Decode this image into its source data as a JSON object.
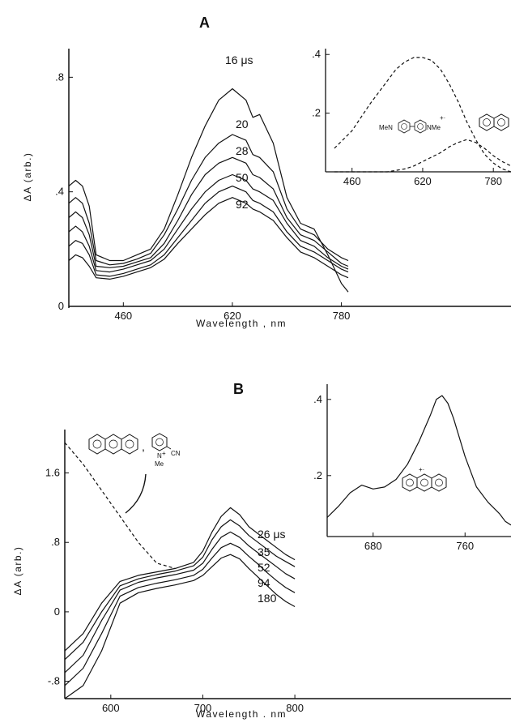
{
  "chart_data": [
    {
      "panel": "A",
      "type": "line",
      "ylabel": "ΔA (arb.)",
      "xlabel": "Wavelength ,     nm",
      "xticks": [
        "460",
        "620",
        "780"
      ],
      "yticks": [
        "0",
        ".4",
        ".8"
      ],
      "xlim": [
        380,
        790
      ],
      "ylim": [
        0,
        0.9
      ],
      "x": [
        380,
        390,
        400,
        410,
        420,
        440,
        460,
        480,
        500,
        520,
        540,
        560,
        580,
        600,
        620,
        640,
        650,
        660,
        680,
        700,
        720,
        740,
        760,
        780,
        790
      ],
      "series": [
        {
          "name": "16 μs",
          "values": [
            0.42,
            0.44,
            0.42,
            0.35,
            0.18,
            0.16,
            0.16,
            0.18,
            0.2,
            0.27,
            0.39,
            0.52,
            0.63,
            0.72,
            0.76,
            0.72,
            0.66,
            0.67,
            0.57,
            0.38,
            0.29,
            0.27,
            0.18,
            0.08,
            0.05
          ]
        },
        {
          "name": "20",
          "values": [
            0.36,
            0.38,
            0.36,
            0.29,
            0.16,
            0.145,
            0.15,
            0.165,
            0.185,
            0.25,
            0.34,
            0.44,
            0.52,
            0.57,
            0.6,
            0.58,
            0.53,
            0.52,
            0.47,
            0.34,
            0.27,
            0.25,
            0.2,
            0.17,
            0.16
          ]
        },
        {
          "name": "28",
          "values": [
            0.31,
            0.33,
            0.31,
            0.25,
            0.14,
            0.135,
            0.14,
            0.155,
            0.17,
            0.22,
            0.3,
            0.39,
            0.46,
            0.5,
            0.52,
            0.5,
            0.46,
            0.45,
            0.41,
            0.31,
            0.25,
            0.23,
            0.19,
            0.15,
            0.14
          ]
        },
        {
          "name": "50",
          "values": [
            0.26,
            0.28,
            0.26,
            0.21,
            0.125,
            0.12,
            0.13,
            0.145,
            0.16,
            0.2,
            0.27,
            0.34,
            0.4,
            0.44,
            0.46,
            0.44,
            0.41,
            0.4,
            0.37,
            0.29,
            0.23,
            0.21,
            0.17,
            0.14,
            0.13
          ]
        },
        {
          "name": "92",
          "values": [
            0.21,
            0.23,
            0.22,
            0.18,
            0.11,
            0.105,
            0.115,
            0.13,
            0.145,
            0.18,
            0.24,
            0.3,
            0.36,
            0.4,
            0.42,
            0.4,
            0.37,
            0.36,
            0.33,
            0.26,
            0.21,
            0.19,
            0.16,
            0.13,
            0.12
          ]
        },
        {
          "name": "",
          "values": [
            0.16,
            0.18,
            0.17,
            0.14,
            0.1,
            0.095,
            0.105,
            0.12,
            0.135,
            0.165,
            0.22,
            0.27,
            0.32,
            0.36,
            0.38,
            0.36,
            0.34,
            0.33,
            0.3,
            0.24,
            0.19,
            0.17,
            0.14,
            0.11,
            0.1
          ]
        }
      ],
      "inset": {
        "type": "line",
        "xticks": [
          "460",
          "620",
          "780"
        ],
        "yticks": [
          ".2",
          ".4"
        ],
        "xlim": [
          400,
          820
        ],
        "ylim": [
          0,
          0.42
        ],
        "x": [
          420,
          460,
          500,
          540,
          560,
          580,
          600,
          620,
          640,
          660,
          680,
          700,
          720,
          740,
          760,
          780,
          800,
          820
        ],
        "series": [
          {
            "name": "",
            "style": "dashed",
            "values": [
              0.08,
              0.14,
              0.23,
              0.31,
              0.35,
              0.375,
              0.39,
              0.39,
              0.38,
              0.35,
              0.3,
              0.24,
              0.17,
              0.11,
              0.06,
              0.03,
              0.01,
              0.0
            ]
          },
          {
            "name": "",
            "style": "dashed",
            "values": [
              0.0,
              0.0,
              0.0,
              0.0,
              0.005,
              0.01,
              0.02,
              0.035,
              0.05,
              0.065,
              0.085,
              0.1,
              0.11,
              0.1,
              0.08,
              0.055,
              0.035,
              0.02
            ]
          }
        ],
        "annotations": [
          "MeN",
          "NMe",
          "+·"
        ]
      }
    },
    {
      "panel": "B",
      "type": "line",
      "ylabel": "ΔA (arb.)",
      "xlabel": "Wavelength .     nm",
      "xticks": [
        "600",
        "700",
        "800"
      ],
      "yticks": [
        "-.8",
        "0",
        ".8",
        "1.6"
      ],
      "xlim": [
        550,
        880
      ],
      "ylim": [
        -1.0,
        2.1
      ],
      "x": [
        550,
        570,
        590,
        610,
        630,
        650,
        670,
        690,
        700,
        710,
        720,
        730,
        740,
        750,
        760,
        770,
        780,
        790,
        800
      ],
      "series": [
        {
          "name": "26 μs",
          "values": [
            -0.45,
            -0.25,
            0.1,
            0.35,
            0.42,
            0.46,
            0.5,
            0.57,
            0.7,
            0.92,
            1.1,
            1.2,
            1.12,
            0.98,
            0.9,
            0.82,
            0.74,
            0.66,
            0.6
          ]
        },
        {
          "name": "35",
          "values": [
            -0.55,
            -0.35,
            0.0,
            0.3,
            0.38,
            0.43,
            0.47,
            0.53,
            0.63,
            0.83,
            0.98,
            1.06,
            0.99,
            0.88,
            0.8,
            0.72,
            0.64,
            0.58,
            0.52
          ]
        },
        {
          "name": "52",
          "values": [
            -0.7,
            -0.5,
            -0.1,
            0.25,
            0.34,
            0.39,
            0.43,
            0.48,
            0.56,
            0.72,
            0.86,
            0.92,
            0.86,
            0.76,
            0.68,
            0.6,
            0.52,
            0.44,
            0.38
          ]
        },
        {
          "name": "94",
          "values": [
            -0.85,
            -0.65,
            -0.25,
            0.18,
            0.28,
            0.33,
            0.37,
            0.42,
            0.49,
            0.62,
            0.74,
            0.79,
            0.74,
            0.64,
            0.55,
            0.45,
            0.36,
            0.28,
            0.22
          ]
        },
        {
          "name": "180",
          "values": [
            -1.0,
            -0.85,
            -0.45,
            0.1,
            0.22,
            0.27,
            0.31,
            0.36,
            0.42,
            0.52,
            0.62,
            0.66,
            0.61,
            0.5,
            0.4,
            0.3,
            0.2,
            0.12,
            0.06
          ]
        },
        {
          "name": "",
          "style": "dashed",
          "values": [
            1.95,
            1.7,
            1.4,
            1.1,
            0.8,
            0.56,
            0.5,
            null,
            null,
            null,
            null,
            null,
            null,
            null,
            null,
            null,
            null,
            null,
            null
          ]
        }
      ],
      "inset": {
        "type": "line",
        "xticks": [
          "680",
          "760"
        ],
        "yticks": [
          ".2",
          ".4"
        ],
        "xlim": [
          640,
          800
        ],
        "ylim": [
          0.04,
          0.44
        ],
        "x": [
          640,
          650,
          660,
          670,
          680,
          690,
          700,
          710,
          720,
          730,
          735,
          740,
          745,
          750,
          760,
          770,
          780,
          790,
          795,
          800
        ],
        "series": [
          {
            "name": "",
            "values": [
              0.09,
              0.12,
              0.155,
              0.175,
              0.165,
              0.17,
              0.19,
              0.23,
              0.29,
              0.36,
              0.4,
              0.41,
              0.39,
              0.35,
              0.25,
              0.17,
              0.13,
              0.1,
              0.08,
              0.07
            ]
          }
        ],
        "annotations": [
          "+·"
        ]
      },
      "structure_annotation": {
        "labels": [
          "N",
          "+",
          "CN",
          "Me"
        ]
      }
    }
  ],
  "labels": {
    "panel_a": "A",
    "panel_b": "B",
    "a_trace_labels": [
      "16 μs",
      "20",
      "28",
      "50",
      "92"
    ],
    "b_trace_labels": [
      "26 μs",
      "35",
      "52",
      "94",
      "180"
    ],
    "a_inset_mol_left": "MeN",
    "a_inset_mol_right": "NMe",
    "a_inset_cation": "+·",
    "b_inset_cation": "+·",
    "b_mol_n": "N",
    "b_mol_plus": "+",
    "b_mol_cn": "CN",
    "b_mol_me": "Me",
    "b_mol_comma": ","
  },
  "colors": {
    "ink": "#111111",
    "background": "#ffffff"
  }
}
